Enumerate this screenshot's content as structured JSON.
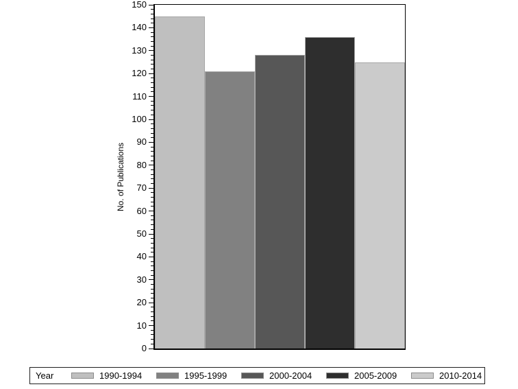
{
  "figure": {
    "background": "#ffffff"
  },
  "chart_data": {
    "type": "bar",
    "title": "",
    "xlabel": "",
    "ylabel": "No. of Publications",
    "categories": [
      "1990-1994",
      "1995-1999",
      "2000-2004",
      "2005-2009",
      "2010-2014"
    ],
    "values": [
      145,
      121,
      128,
      136,
      125
    ],
    "ylim": [
      0,
      150
    ],
    "ytick_interval": 10,
    "minor_tick_interval": 2,
    "yticks": [
      0,
      10,
      20,
      30,
      40,
      50,
      60,
      70,
      80,
      90,
      100,
      110,
      120,
      130,
      140,
      150
    ],
    "grid": false,
    "bar_colors": [
      "#bfbfbf",
      "#818181",
      "#575757",
      "#2e2e2e",
      "#cbcbcb"
    ],
    "bar_outline_color": "#a6a6a6",
    "axis_color": "#000000",
    "legend": {
      "title": "Year",
      "position": "bottom",
      "entries": [
        "1990-1994",
        "1995-1999",
        "2000-2004",
        "2005-2009",
        "2010-2014"
      ]
    }
  }
}
